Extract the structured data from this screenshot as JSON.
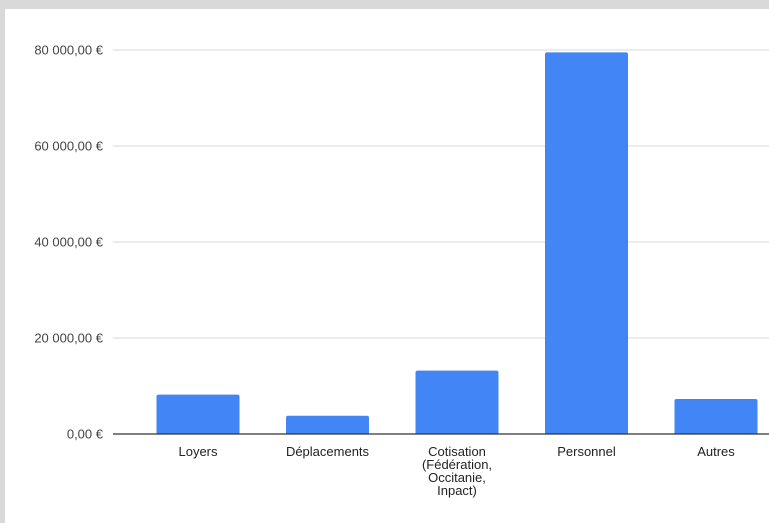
{
  "chart_data": {
    "type": "bar",
    "title": "",
    "xlabel": "",
    "ylabel": "",
    "categories": [
      "Loyers",
      "Déplacements",
      "Cotisation (Fédération, Occitanie, Inpact)",
      "Personnel",
      "Autres"
    ],
    "category_lines": [
      [
        "Loyers"
      ],
      [
        "Déplacements"
      ],
      [
        "Cotisation",
        "(Fédération,",
        "Occitanie,",
        "Inpact)"
      ],
      [
        "Personnel"
      ],
      [
        "Autres"
      ]
    ],
    "values": [
      8200,
      3800,
      13200,
      79500,
      7300
    ],
    "ylim": [
      0,
      80000
    ],
    "yticks": [
      0,
      20000,
      40000,
      60000,
      80000
    ],
    "ytick_labels": [
      "0,00 €",
      "20 000,00 €",
      "40 000,00 €",
      "60 000,00 €",
      "80 000,00 €"
    ],
    "grid": true,
    "legend": "none",
    "colors": {
      "bar": "#4285f4",
      "grid": "#d9d9d9",
      "axis": "#333333",
      "frame": "#d9d9d9"
    }
  }
}
